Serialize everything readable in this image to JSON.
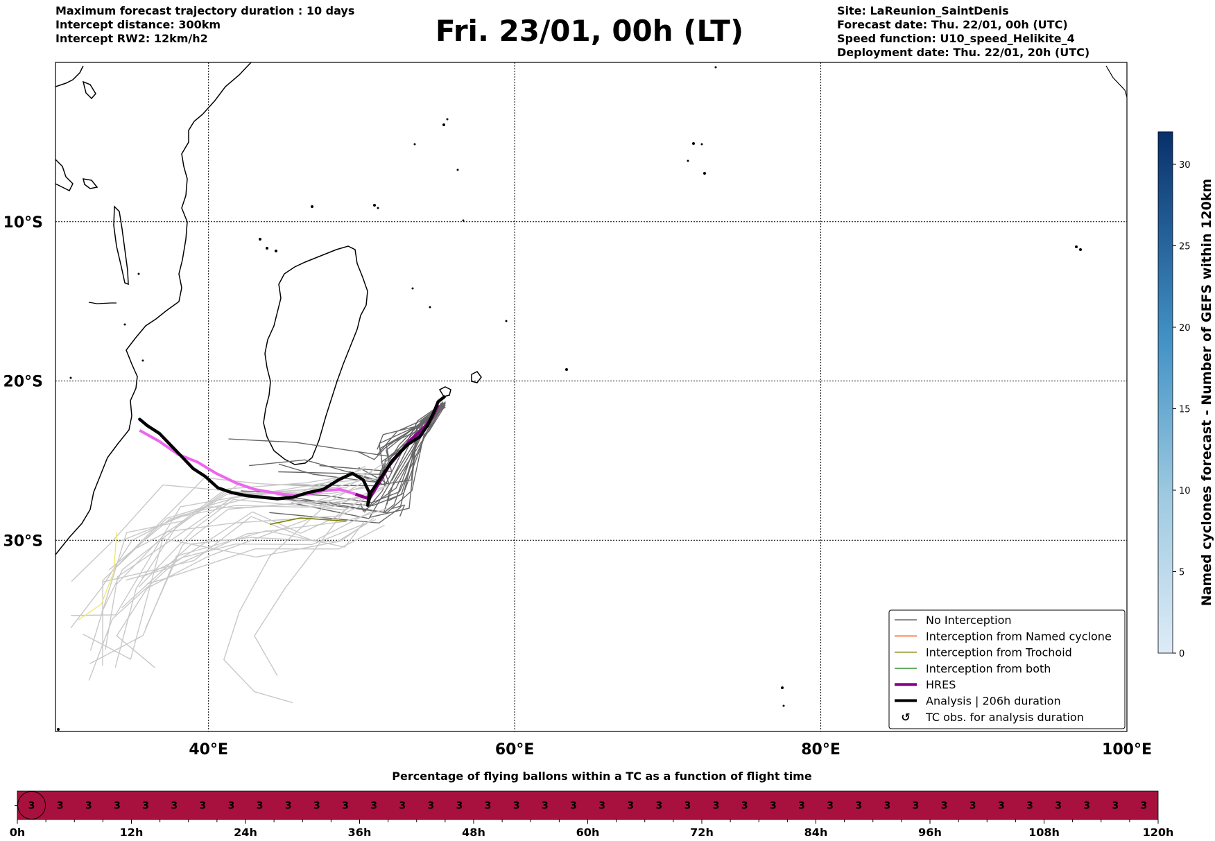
{
  "header": {
    "left": [
      "Maximum forecast trajectory duration : 10 days",
      "Intercept distance: 300km",
      "Intercept RW2: 12km/h2"
    ],
    "title": "Fri. 23/01, 00h (LT)",
    "right": [
      "Site: LaReunion_SaintDenis",
      "Forecast date: Thu. 22/01, 00h (UTC)",
      "Speed function: U10_speed_Helikite_4",
      "Deployment date: Thu. 22/01, 20h (UTC)"
    ]
  },
  "map": {
    "lon_range": [
      30,
      100
    ],
    "lat_range": [
      -42,
      0
    ],
    "lat_ticks": [
      {
        "value": -10,
        "label": "10°S"
      },
      {
        "value": -20,
        "label": "20°S"
      },
      {
        "value": -30,
        "label": "30°S"
      }
    ],
    "lon_ticks": [
      {
        "value": 40,
        "label": "40°E"
      },
      {
        "value": 60,
        "label": "60°E"
      },
      {
        "value": 80,
        "label": "80°E"
      },
      {
        "value": 100,
        "label": "100°E"
      }
    ],
    "colors": {
      "no_interception": "#666666",
      "no_interception_light": "#c8c8c8",
      "named_cyclone": "#ff5a1e",
      "trochoid": "#808000",
      "both": "#228b22",
      "hres": "#8b008b",
      "hres_light": "#ee66ee",
      "analysis": "#000000",
      "pale_yellow": "#f0e870"
    },
    "analysis_track": [
      [
        55.4,
        -21.0
      ],
      [
        55.0,
        -21.3
      ],
      [
        54.7,
        -22.0
      ],
      [
        54.3,
        -22.8
      ],
      [
        53.8,
        -23.5
      ],
      [
        53.0,
        -24.0
      ],
      [
        52.0,
        -25.0
      ],
      [
        51.1,
        -26.3
      ],
      [
        50.6,
        -27.0
      ],
      [
        50.4,
        -27.8
      ],
      [
        50.5,
        -27.0
      ],
      [
        50.1,
        -26.2
      ],
      [
        49.4,
        -25.8
      ],
      [
        48.5,
        -26.2
      ],
      [
        47.5,
        -26.8
      ],
      [
        46.5,
        -27.0
      ],
      [
        45.5,
        -27.3
      ],
      [
        44.5,
        -27.4
      ],
      [
        43.5,
        -27.3
      ],
      [
        42.5,
        -27.2
      ],
      [
        41.5,
        -27.0
      ],
      [
        40.6,
        -26.7
      ],
      [
        39.8,
        -26.0
      ],
      [
        39.0,
        -25.5
      ],
      [
        38.2,
        -24.7
      ],
      [
        37.5,
        -24.0
      ],
      [
        36.8,
        -23.3
      ],
      [
        36.0,
        -22.8
      ],
      [
        35.5,
        -22.4
      ]
    ],
    "hres_track": [
      [
        55.0,
        -21.5
      ],
      [
        54.6,
        -22.3
      ],
      [
        54.0,
        -23.0
      ],
      [
        53.2,
        -23.7
      ],
      [
        52.5,
        -24.5
      ],
      [
        51.8,
        -25.3
      ],
      [
        51.2,
        -26.3
      ],
      [
        50.5,
        -27.4
      ],
      [
        49.6,
        -27.1
      ],
      [
        48.6,
        -26.8
      ],
      [
        47.5,
        -26.9
      ],
      [
        46.5,
        -27.1
      ],
      [
        45.5,
        -27.2
      ],
      [
        44.2,
        -27.0
      ],
      [
        43.0,
        -26.8
      ],
      [
        41.8,
        -26.4
      ],
      [
        40.5,
        -25.8
      ],
      [
        39.3,
        -25.1
      ],
      [
        38.0,
        -24.6
      ],
      [
        36.8,
        -23.8
      ],
      [
        35.5,
        -23.1
      ]
    ],
    "legend": [
      {
        "label": "No Interception",
        "style": "thin",
        "color_key": "no_interception"
      },
      {
        "label": "Interception from Named cyclone",
        "style": "thin",
        "color_key": "named_cyclone"
      },
      {
        "label": "Interception from Trochoid",
        "style": "thin",
        "color_key": "trochoid"
      },
      {
        "label": "Interception from both",
        "style": "thin",
        "color_key": "both"
      },
      {
        "label": "HRES",
        "style": "thick",
        "color_key": "hres"
      },
      {
        "label": "Analysis | 206h duration",
        "style": "thick",
        "color_key": "analysis"
      },
      {
        "label": "TC obs. for analysis duration",
        "style": "symbol",
        "symbol": "↺"
      }
    ]
  },
  "colorbar": {
    "label": "Named cyclones forecast - Number of GEFS within 120km",
    "range": [
      0,
      32
    ],
    "ticks": [
      0,
      5,
      10,
      15,
      20,
      25,
      30
    ],
    "color_low": "#deebf7",
    "color_high": "#08306b"
  },
  "timeline": {
    "title": "Percentage of flying ballons within a TC as a function of flight time",
    "bar_color": "#a8113e",
    "range_hours": [
      0,
      120
    ],
    "cell_hours": 3,
    "values": [
      "3",
      "3",
      "3",
      "3",
      "3",
      "3",
      "3",
      "3",
      "3",
      "3",
      "3",
      "3",
      "3",
      "3",
      "3",
      "3",
      "3",
      "3",
      "3",
      "3",
      "3",
      "3",
      "3",
      "3",
      "3",
      "3",
      "3",
      "3",
      "3",
      "3",
      "3",
      "3",
      "3",
      "3",
      "3",
      "3",
      "3",
      "3",
      "3",
      "3"
    ],
    "circled_index": 0,
    "tick_labels": [
      {
        "hour": 0,
        "label": "0h"
      },
      {
        "hour": 12,
        "label": "12h"
      },
      {
        "hour": 24,
        "label": "24h"
      },
      {
        "hour": 36,
        "label": "36h"
      },
      {
        "hour": 48,
        "label": "48h"
      },
      {
        "hour": 60,
        "label": "60h"
      },
      {
        "hour": 72,
        "label": "72h"
      },
      {
        "hour": 84,
        "label": "84h"
      },
      {
        "hour": 96,
        "label": "96h"
      },
      {
        "hour": 108,
        "label": "108h"
      },
      {
        "hour": 120,
        "label": "120h"
      }
    ]
  }
}
